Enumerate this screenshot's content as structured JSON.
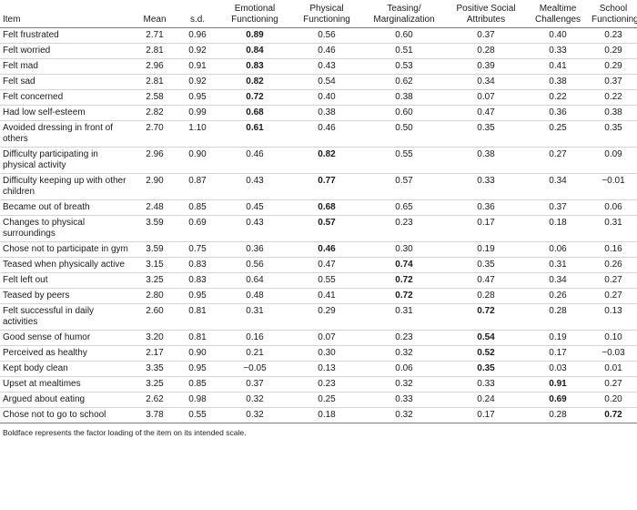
{
  "columns": [
    "Item",
    "Mean",
    "s.d.",
    "Emotional Functioning",
    "Physical Functioning",
    "Teasing/ Marginalization",
    "Positive Social Attributes",
    "Mealtime Challenges",
    "School Functioning"
  ],
  "rows": [
    {
      "item": "Felt frustrated",
      "values": [
        "2.71",
        "0.96",
        "0.89",
        "0.56",
        "0.60",
        "0.37",
        "0.40",
        "0.23"
      ],
      "bold": 2
    },
    {
      "item": "Felt worried",
      "values": [
        "2.81",
        "0.92",
        "0.84",
        "0.46",
        "0.51",
        "0.28",
        "0.33",
        "0.29"
      ],
      "bold": 2
    },
    {
      "item": "Felt mad",
      "values": [
        "2.96",
        "0.91",
        "0.83",
        "0.43",
        "0.53",
        "0.39",
        "0.41",
        "0.29"
      ],
      "bold": 2
    },
    {
      "item": "Felt sad",
      "values": [
        "2.81",
        "0.92",
        "0.82",
        "0.54",
        "0.62",
        "0.34",
        "0.38",
        "0.37"
      ],
      "bold": 2
    },
    {
      "item": "Felt concerned",
      "values": [
        "2.58",
        "0.95",
        "0.72",
        "0.40",
        "0.38",
        "0.07",
        "0.22",
        "0.22"
      ],
      "bold": 2
    },
    {
      "item": "Had low self-esteem",
      "values": [
        "2.82",
        "0.99",
        "0.68",
        "0.38",
        "0.60",
        "0.47",
        "0.36",
        "0.38"
      ],
      "bold": 2
    },
    {
      "item": "Avoided dressing in front of others",
      "values": [
        "2.70",
        "1.10",
        "0.61",
        "0.46",
        "0.50",
        "0.35",
        "0.25",
        "0.35"
      ],
      "bold": 2
    },
    {
      "item": "Difficulty participating in physical activity",
      "values": [
        "2.96",
        "0.90",
        "0.46",
        "0.82",
        "0.55",
        "0.38",
        "0.27",
        "0.09"
      ],
      "bold": 3
    },
    {
      "item": "Difficulty keeping up with other children",
      "values": [
        "2.90",
        "0.87",
        "0.43",
        "0.77",
        "0.57",
        "0.33",
        "0.34",
        "−0.01"
      ],
      "bold": 3
    },
    {
      "item": "Became out of breath",
      "values": [
        "2.48",
        "0.85",
        "0.45",
        "0.68",
        "0.65",
        "0.36",
        "0.37",
        "0.06"
      ],
      "bold": 3
    },
    {
      "item": "Changes to physical surroundings",
      "values": [
        "3.59",
        "0.69",
        "0.43",
        "0.57",
        "0.23",
        "0.17",
        "0.18",
        "0.31"
      ],
      "bold": 3
    },
    {
      "item": "Chose not to participate in gym",
      "values": [
        "3.59",
        "0.75",
        "0.36",
        "0.46",
        "0.30",
        "0.19",
        "0.06",
        "0.16"
      ],
      "bold": 3
    },
    {
      "item": "Teased when physically active",
      "values": [
        "3.15",
        "0.83",
        "0.56",
        "0.47",
        "0.74",
        "0.35",
        "0.31",
        "0.26"
      ],
      "bold": 4
    },
    {
      "item": "Felt left out",
      "values": [
        "3.25",
        "0.83",
        "0.64",
        "0.55",
        "0.72",
        "0.47",
        "0.34",
        "0.27"
      ],
      "bold": 4
    },
    {
      "item": "Teased by peers",
      "values": [
        "2.80",
        "0.95",
        "0.48",
        "0.41",
        "0.72",
        "0.28",
        "0.26",
        "0.27"
      ],
      "bold": 4
    },
    {
      "item": "Felt successful in daily activities",
      "values": [
        "2.60",
        "0.81",
        "0.31",
        "0.29",
        "0.31",
        "0.72",
        "0.28",
        "0.13"
      ],
      "bold": 5
    },
    {
      "item": "Good sense of humor",
      "values": [
        "3.20",
        "0.81",
        "0.16",
        "0.07",
        "0.23",
        "0.54",
        "0.19",
        "0.10"
      ],
      "bold": 5
    },
    {
      "item": "Perceived as healthy",
      "values": [
        "2.17",
        "0.90",
        "0.21",
        "0.30",
        "0.32",
        "0.52",
        "0.17",
        "−0.03"
      ],
      "bold": 5
    },
    {
      "item": "Kept body clean",
      "values": [
        "3.35",
        "0.95",
        "−0.05",
        "0.13",
        "0.06",
        "0.35",
        "0.03",
        "0.01"
      ],
      "bold": 5
    },
    {
      "item": "Upset at mealtimes",
      "values": [
        "3.25",
        "0.85",
        "0.37",
        "0.23",
        "0.32",
        "0.33",
        "0.91",
        "0.27"
      ],
      "bold": 6
    },
    {
      "item": "Argued about eating",
      "values": [
        "2.62",
        "0.98",
        "0.32",
        "0.25",
        "0.33",
        "0.24",
        "0.69",
        "0.20"
      ],
      "bold": 6
    },
    {
      "item": "Chose not to go to school",
      "values": [
        "3.78",
        "0.55",
        "0.32",
        "0.18",
        "0.32",
        "0.17",
        "0.28",
        "0.72"
      ],
      "bold": 7
    }
  ],
  "footnote": "Boldface represents the factor loading of the item on its intended scale."
}
